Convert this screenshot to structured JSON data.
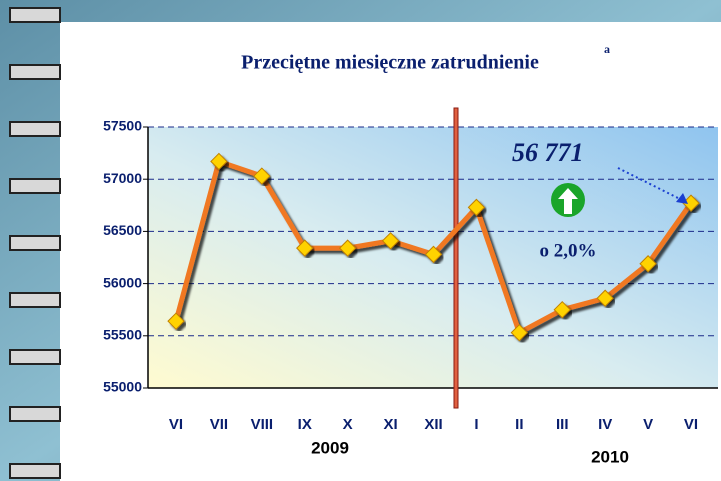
{
  "chart_data": {
    "type": "line",
    "title": "Przeciętne miesięczne zatrudnienie",
    "title_superscript": "a",
    "categories": [
      "VI",
      "VII",
      "VIII",
      "IX",
      "X",
      "XI",
      "XII",
      "I",
      "II",
      "III",
      "IV",
      "V",
      "VI"
    ],
    "values": [
      55640,
      57170,
      57030,
      56340,
      56340,
      56410,
      56280,
      56730,
      55530,
      55750,
      55860,
      56190,
      56771
    ],
    "color": "#f07820",
    "marker_color": "#ffd200",
    "ylim": [
      55000,
      57500
    ],
    "yticks": [
      55000,
      55500,
      56000,
      56500,
      57000,
      57500
    ],
    "grid": true,
    "year_labels": [
      "2009",
      "2010"
    ],
    "annotations": [
      "56 771",
      "o 2,0%"
    ]
  }
}
